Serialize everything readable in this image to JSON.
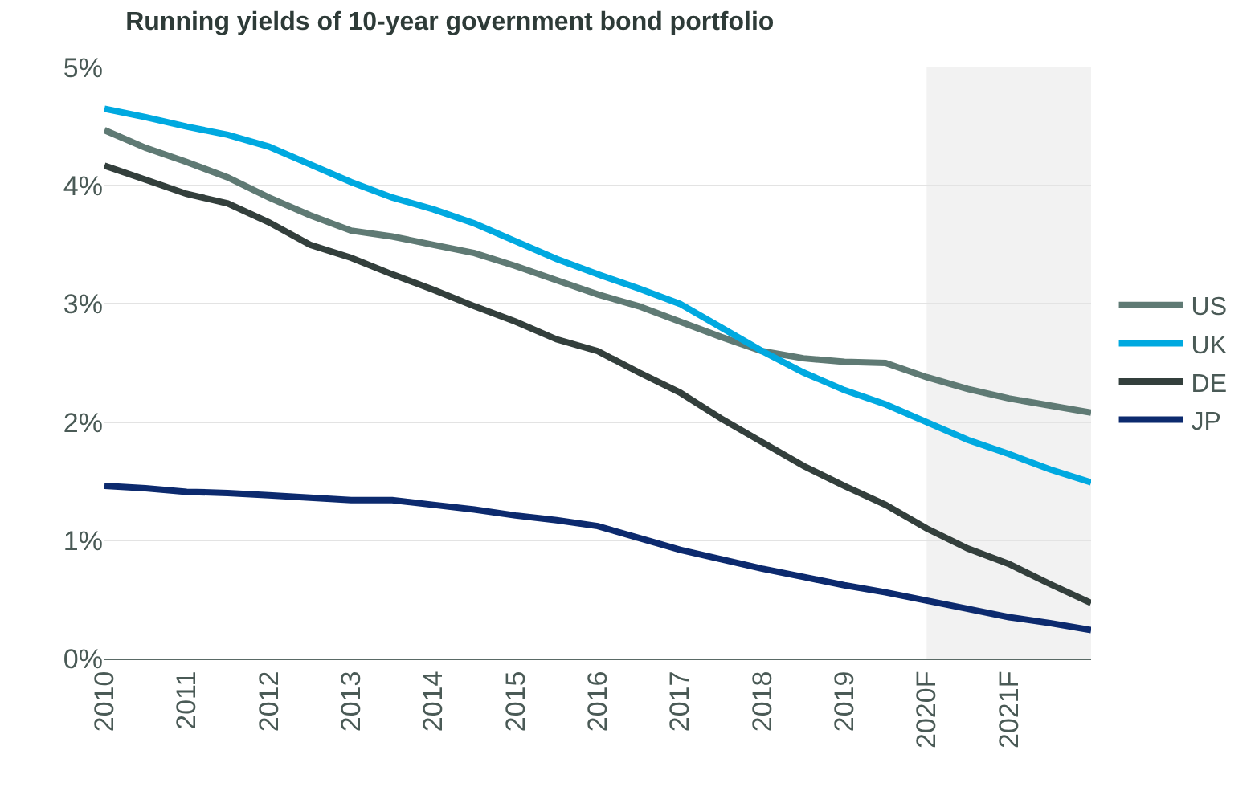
{
  "chart_data": {
    "type": "line",
    "title": "Running yields of 10-year government bond portfolio",
    "x": [
      2010,
      2010.5,
      2011,
      2011.5,
      2012,
      2012.5,
      2013,
      2013.5,
      2014,
      2014.5,
      2015,
      2015.5,
      2016,
      2016.5,
      2017,
      2017.5,
      2018,
      2018.5,
      2019,
      2019.5,
      2020,
      2020.5,
      2021,
      2021.5,
      2022
    ],
    "series": [
      {
        "name": "US",
        "color": "#5f7a74",
        "values": [
          4.47,
          4.32,
          4.2,
          4.07,
          3.9,
          3.75,
          3.62,
          3.57,
          3.5,
          3.43,
          3.32,
          3.2,
          3.08,
          2.98,
          2.85,
          2.72,
          2.6,
          2.54,
          2.51,
          2.5,
          2.38,
          2.28,
          2.2,
          2.14,
          2.08
        ]
      },
      {
        "name": "UK",
        "color": "#00a9e0",
        "values": [
          4.65,
          4.58,
          4.5,
          4.43,
          4.33,
          4.18,
          4.03,
          3.9,
          3.8,
          3.68,
          3.53,
          3.38,
          3.25,
          3.13,
          3.0,
          2.8,
          2.6,
          2.42,
          2.27,
          2.15,
          2.0,
          1.85,
          1.73,
          1.6,
          1.49
        ]
      },
      {
        "name": "DE",
        "color": "#333f3c",
        "values": [
          4.17,
          4.05,
          3.93,
          3.85,
          3.69,
          3.5,
          3.39,
          3.25,
          3.12,
          2.98,
          2.85,
          2.7,
          2.6,
          2.42,
          2.25,
          2.03,
          1.83,
          1.63,
          1.46,
          1.3,
          1.1,
          0.93,
          0.8,
          0.63,
          0.47
        ]
      },
      {
        "name": "JP",
        "color": "#0c2a6e",
        "values": [
          1.46,
          1.44,
          1.41,
          1.4,
          1.38,
          1.36,
          1.34,
          1.34,
          1.3,
          1.26,
          1.21,
          1.17,
          1.12,
          1.02,
          0.92,
          0.84,
          0.76,
          0.69,
          0.62,
          0.56,
          0.49,
          0.42,
          0.35,
          0.3,
          0.24
        ]
      }
    ],
    "xlim": [
      2010,
      2022
    ],
    "xticks": [
      2010,
      2011,
      2012,
      2013,
      2014,
      2015,
      2016,
      2017,
      2018,
      2019,
      {
        "value": 2020,
        "label": "2020F"
      },
      {
        "value": 2021,
        "label": "2021F"
      }
    ],
    "ylim": [
      0,
      5
    ],
    "yticks": [
      {
        "value": 0,
        "label": "0%"
      },
      {
        "value": 1,
        "label": "1%"
      },
      {
        "value": 2,
        "label": "2%"
      },
      {
        "value": 3,
        "label": "3%"
      },
      {
        "value": 4,
        "label": "4%"
      },
      {
        "value": 5,
        "label": "5%"
      }
    ],
    "bands": [
      {
        "axis": "x",
        "from": 2020,
        "to": 2022,
        "color": "#f2f2f2"
      }
    ],
    "grid": "y",
    "legend": "right",
    "marker": "none",
    "line_style": "solid"
  }
}
